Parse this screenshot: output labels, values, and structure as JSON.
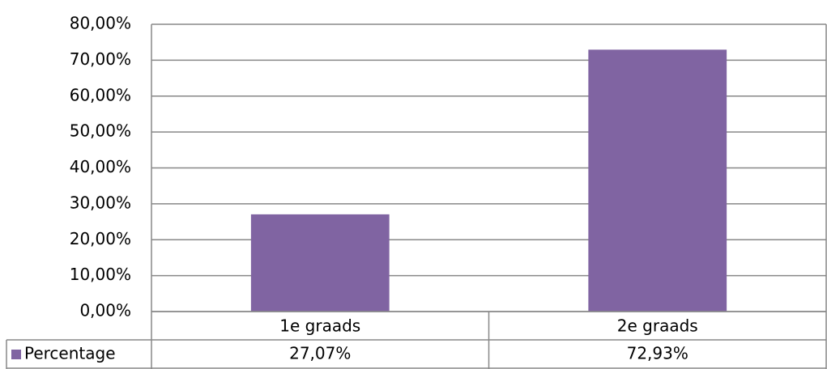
{
  "chart_data": {
    "type": "bar",
    "categories": [
      "1e graads",
      "2e graads"
    ],
    "series": [
      {
        "name": "Percentage",
        "color": "#8064a2",
        "values": [
          27.07,
          72.93
        ],
        "value_labels": [
          "27,07%",
          "72,93%"
        ]
      }
    ],
    "ylim": [
      0,
      80
    ],
    "yticks": [
      {
        "value": 0,
        "label": "0,00%"
      },
      {
        "value": 10,
        "label": "10,00%"
      },
      {
        "value": 20,
        "label": "20,00%"
      },
      {
        "value": 30,
        "label": "30,00%"
      },
      {
        "value": 40,
        "label": "40,00%"
      },
      {
        "value": 50,
        "label": "50,00%"
      },
      {
        "value": 60,
        "label": "60,00%"
      },
      {
        "value": 70,
        "label": "70,00%"
      },
      {
        "value": 80,
        "label": "80,00%"
      }
    ],
    "grid": true,
    "data_table": true
  }
}
